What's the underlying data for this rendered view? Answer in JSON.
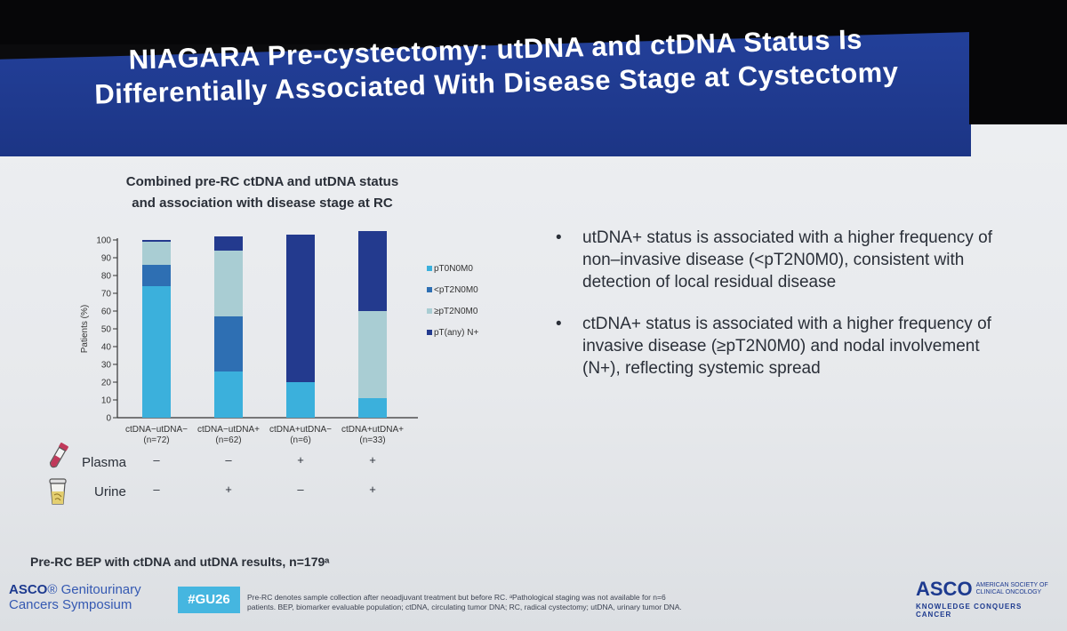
{
  "slide": {
    "title_line1": "NIAGARA Pre-cystectomy: utDNA and ctDNA Status Is",
    "title_line2": "Differentially Associated With Disease Stage at Cystectomy"
  },
  "chart_title_line1": "Combined pre-RC ctDNA and utDNA status",
  "chart_title_line2": "and association with disease stage at RC",
  "chart_data": {
    "type": "bar",
    "stacked": true,
    "ylabel": "Patients (%)",
    "ylim": [
      0,
      100
    ],
    "yticks": [
      0,
      10,
      20,
      30,
      40,
      50,
      60,
      70,
      80,
      90,
      100
    ],
    "categories": [
      "ctDNA−utDNA−",
      "ctDNA−utDNA+",
      "ctDNA+utDNA−",
      "ctDNA+utDNA+"
    ],
    "category_n": [
      "(n=72)",
      "(n=62)",
      "(n=6)",
      "(n=33)"
    ],
    "legend_position": "right",
    "series": [
      {
        "name": "pT0N0M0",
        "color": "#3bb0dc",
        "values": [
          74,
          26,
          20,
          11
        ]
      },
      {
        "name": "<pT2N0M0",
        "color": "#2e6fb3",
        "values": [
          12,
          31,
          0,
          0
        ]
      },
      {
        "name": "≥pT2N0M0",
        "color": "#a9cdd3",
        "values": [
          13,
          37,
          0,
          49
        ]
      },
      {
        "name": "pT(any) N+",
        "color": "#233a8e",
        "values": [
          1,
          8,
          83,
          45
        ]
      }
    ]
  },
  "sample_rows": [
    {
      "label": "Plasma",
      "icon": "plasma-tube-icon",
      "marks": [
        "–",
        "–",
        "+",
        "+"
      ]
    },
    {
      "label": "Urine",
      "icon": "urine-cup-icon",
      "marks": [
        "–",
        "+",
        "–",
        "+"
      ]
    }
  ],
  "bullets": [
    {
      "dot": "•",
      "text": "utDNA+ status is associated with a higher frequency of non–invasive disease (<pT2N0M0), consistent with detection of local residual disease"
    },
    {
      "dot": "•",
      "text": "ctDNA+ status is associated with a higher frequency of invasive disease (≥pT2N0M0) and nodal involvement (N+), reflecting systemic spread"
    }
  ],
  "bep_note": "Pre-RC BEP with ctDNA and utDNA results, n=179ᵃ",
  "footer": {
    "left_brand_asco": "ASCO",
    "left_brand_symbol": "®",
    "left_brand_gu": " Genitourinary",
    "left_brand_line2": "Cancers Symposium",
    "hashtag": "#GU26",
    "footnote": "Pre-RC denotes sample collection after neoadjuvant treatment but before RC. ᵃPathological staging was not available for n=6 patients. BEP, biomarker evaluable population; ctDNA, circulating tumor DNA; RC, radical cystectomy; utDNA, urinary tumor DNA.",
    "right_brand_asco": "ASCO",
    "right_brand_society_line1": "AMERICAN SOCIETY OF",
    "right_brand_society_line2": "CLINICAL ONCOLOGY",
    "right_brand_tagline": "KNOWLEDGE CONQUERS CANCER"
  },
  "colors": {
    "title_band": "#1f3a8f",
    "brand_blue": "#1d3a8f",
    "hashtag_bg": "#45b6e0"
  }
}
